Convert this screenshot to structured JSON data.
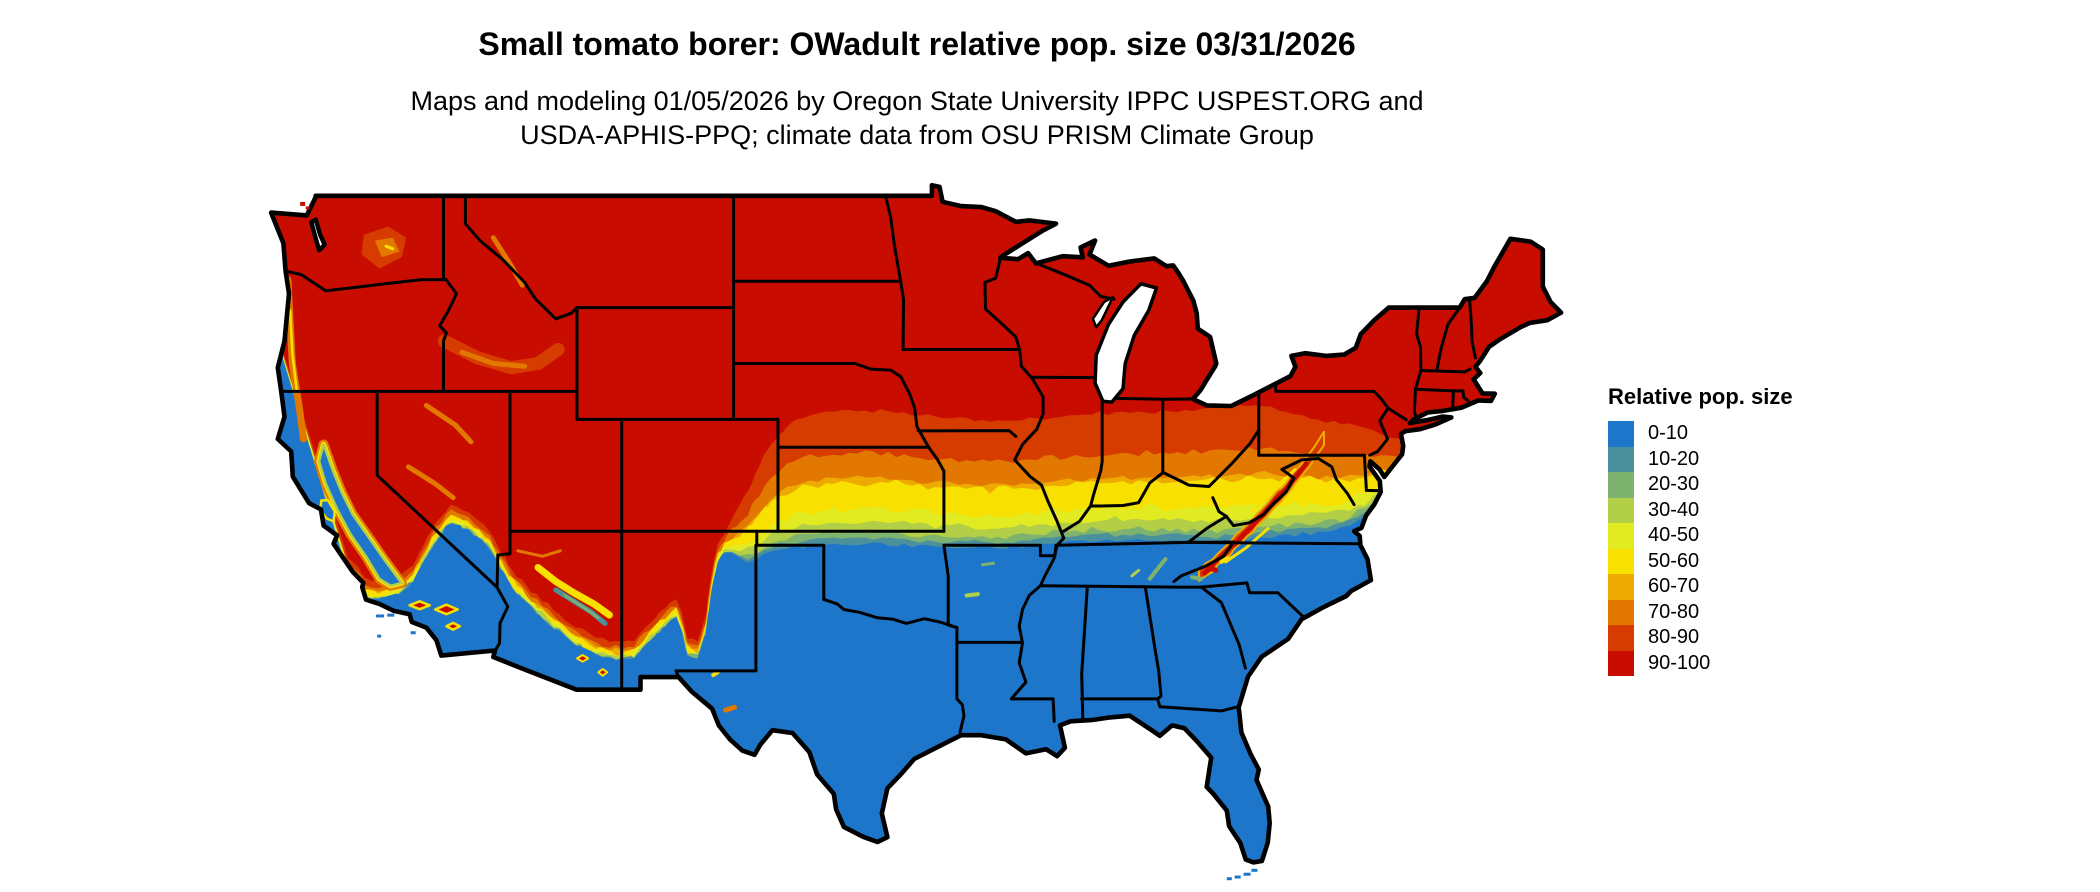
{
  "title": "Small tomato borer: OWadult relative pop. size 03/31/2026",
  "subtitle": {
    "line1": "Maps and modeling 01/05/2026 by Oregon State University IPPC USPEST.ORG and",
    "line2": "USDA-APHIS-PPQ; climate data from OSU PRISM Climate Group"
  },
  "map": {
    "type": "choropleth-raster",
    "area": "contiguous-united-states"
  },
  "legend": {
    "title": "Relative pop. size",
    "items": [
      {
        "label": "0-10",
        "color": "#1D76C9"
      },
      {
        "label": "10-20",
        "color": "#4B919D"
      },
      {
        "label": "20-30",
        "color": "#7DB26F"
      },
      {
        "label": "30-40",
        "color": "#B3CE47"
      },
      {
        "label": "40-50",
        "color": "#E2EA21"
      },
      {
        "label": "50-60",
        "color": "#F8E000"
      },
      {
        "label": "60-70",
        "color": "#EEAA00"
      },
      {
        "label": "70-80",
        "color": "#E27800"
      },
      {
        "label": "80-90",
        "color": "#D63C00"
      },
      {
        "label": "90-100",
        "color": "#C80D00"
      }
    ]
  }
}
